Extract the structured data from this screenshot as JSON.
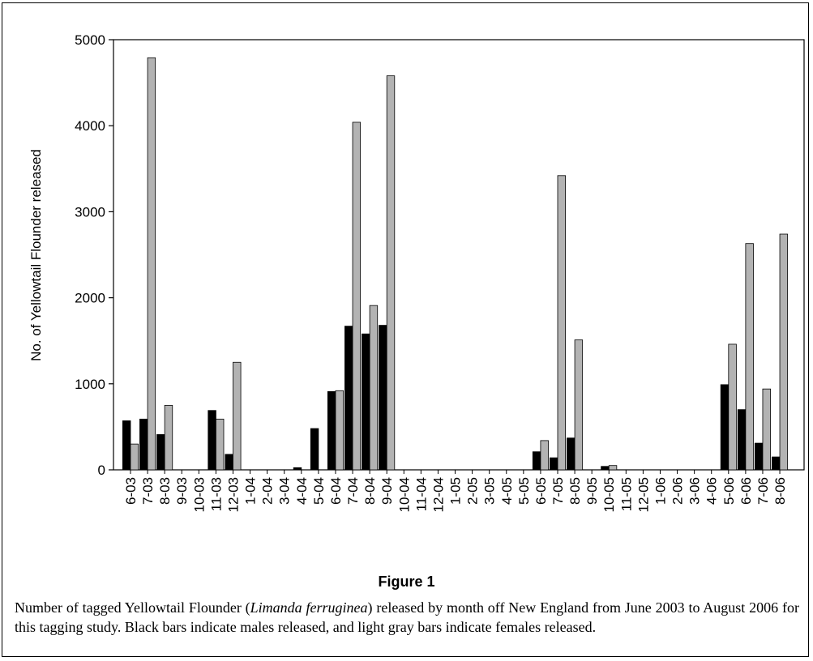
{
  "chart_data": {
    "type": "bar",
    "ylabel": "No. of Yellowtail Flounder released",
    "categories": [
      "6-03",
      "7-03",
      "8-03",
      "9-03",
      "10-03",
      "11-03",
      "12-03",
      "1-04",
      "2-04",
      "3-04",
      "4-04",
      "5-04",
      "6-04",
      "7-04",
      "8-04",
      "9-04",
      "10-04",
      "11-04",
      "12-04",
      "1-05",
      "2-05",
      "3-05",
      "4-05",
      "5-05",
      "6-05",
      "7-05",
      "8-05",
      "9-05",
      "10-05",
      "11-05",
      "12-05",
      "1-06",
      "2-06",
      "3-06",
      "4-06",
      "5-06",
      "6-06",
      "7-06",
      "8-06"
    ],
    "series": [
      {
        "color": "#000000",
        "values": [
          570,
          590,
          410,
          0,
          0,
          690,
          180,
          0,
          0,
          0,
          25,
          480,
          910,
          1670,
          1580,
          1680,
          0,
          0,
          0,
          0,
          0,
          0,
          0,
          0,
          210,
          140,
          370,
          0,
          40,
          0,
          0,
          0,
          0,
          0,
          0,
          990,
          700,
          310,
          150
        ]
      },
      {
        "color": "#b3b3b3",
        "values": [
          300,
          4790,
          750,
          0,
          0,
          590,
          1250,
          0,
          0,
          0,
          0,
          0,
          920,
          4040,
          1910,
          4580,
          0,
          0,
          0,
          0,
          0,
          0,
          0,
          0,
          340,
          3420,
          1510,
          0,
          50,
          0,
          0,
          0,
          0,
          0,
          0,
          1460,
          2630,
          940,
          2740
        ]
      }
    ],
    "ylim": [
      0,
      5000
    ],
    "yticks": [
      0,
      1000,
      2000,
      3000,
      4000,
      5000
    ]
  },
  "figure": {
    "label": "Figure 1",
    "caption": [
      "Number of tagged Yellowtail Flounder (",
      "Limanda ferruginea",
      ") released by month off New England from June 2003 to August 2006 for this tagging study. Black bars indicate males released, and light gray bars indicate females released."
    ]
  }
}
